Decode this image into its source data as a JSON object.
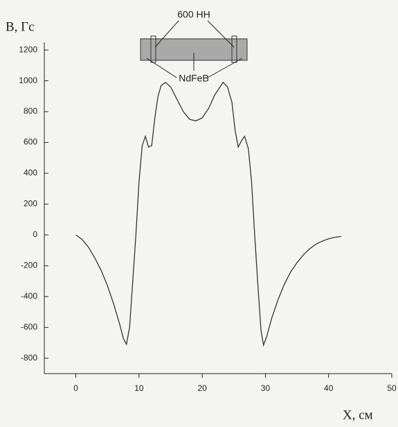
{
  "chart_data": {
    "type": "line",
    "ylabel": "B, Гс",
    "xlabel": "X, см",
    "annotations": [
      "600 НН",
      "NdFeB"
    ],
    "x": [
      0,
      1,
      2,
      3,
      4,
      5,
      6,
      7,
      7.5,
      8,
      8.5,
      9,
      9.5,
      10,
      10.5,
      11,
      11.5,
      12,
      12.5,
      13,
      13.5,
      14.2,
      15,
      16,
      17,
      18,
      19,
      20,
      21,
      22,
      23.3,
      24,
      24.7,
      25.2,
      25.7,
      26.2,
      26.7,
      27.3,
      27.8,
      28.3,
      28.8,
      29.3,
      29.7,
      30.2,
      31,
      32,
      33,
      34,
      35,
      36,
      37,
      38,
      39,
      40,
      41,
      42
    ],
    "series": [
      {
        "color": "#333333",
        "values": [
          0,
          -30,
          -80,
          -150,
          -230,
          -330,
          -450,
          -590,
          -670,
          -710,
          -600,
          -300,
          0,
          350,
          580,
          640,
          570,
          580,
          760,
          900,
          970,
          990,
          960,
          880,
          800,
          750,
          740,
          760,
          820,
          910,
          990,
          960,
          860,
          680,
          570,
          610,
          640,
          560,
          350,
          0,
          -320,
          -620,
          -715,
          -660,
          -540,
          -420,
          -320,
          -240,
          -180,
          -130,
          -90,
          -60,
          -40,
          -25,
          -15,
          -10
        ]
      }
    ],
    "xlim": [
      -5,
      50
    ],
    "xticks": [
      0,
      10,
      20,
      30,
      40,
      50
    ],
    "ylim": [
      -900,
      1250
    ],
    "yticks": [
      -800,
      -600,
      -400,
      -200,
      0,
      200,
      400,
      600,
      800,
      1000,
      1200
    ]
  }
}
